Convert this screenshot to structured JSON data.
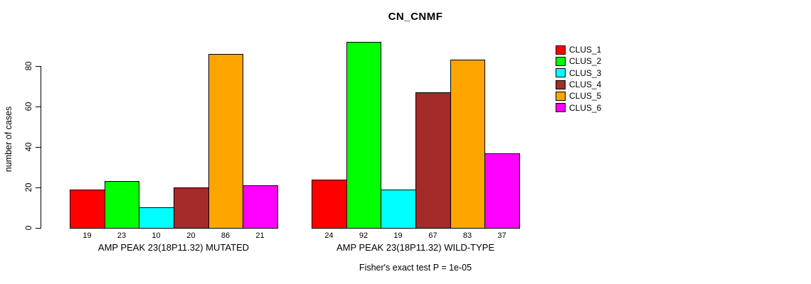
{
  "chart_data": {
    "type": "bar",
    "title": "CN_CNMF",
    "ylabel": "number of cases",
    "xlabel": "",
    "ylim": [
      0,
      92
    ],
    "yticks": [
      0,
      20,
      40,
      60,
      80
    ],
    "grid": false,
    "legend_position": "right",
    "categories": [
      "AMP PEAK 23(18P11.32) MUTATED",
      "AMP PEAK 23(18P11.32) WILD-TYPE"
    ],
    "groups": [
      {
        "label": "AMP PEAK 23(18P11.32) MUTATED",
        "values": [
          19,
          23,
          10,
          20,
          86,
          21
        ]
      },
      {
        "label": "AMP PEAK 23(18P11.32) WILD-TYPE",
        "values": [
          24,
          92,
          19,
          67,
          83,
          37
        ]
      }
    ],
    "series": [
      {
        "name": "CLUS_1",
        "color": "#FF0000",
        "values": [
          19,
          24
        ]
      },
      {
        "name": "CLUS_2",
        "color": "#00FF00",
        "values": [
          23,
          92
        ]
      },
      {
        "name": "CLUS_3",
        "color": "#00FFFF",
        "values": [
          10,
          19
        ]
      },
      {
        "name": "CLUS_4",
        "color": "#A52A2A",
        "values": [
          20,
          67
        ]
      },
      {
        "name": "CLUS_5",
        "color": "#FFA500",
        "values": [
          86,
          83
        ]
      },
      {
        "name": "CLUS_6",
        "color": "#FF00FF",
        "values": [
          21,
          37
        ]
      }
    ],
    "footnote": "Fisher's exact test P = 1e-05",
    "axis_color": "#000000",
    "bar_border_color": "#000000"
  }
}
